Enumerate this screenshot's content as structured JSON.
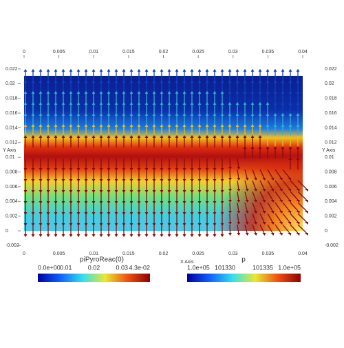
{
  "x_axis": {
    "title": "X Axis",
    "ticks": [
      0,
      0.005,
      0.01,
      0.015,
      0.02,
      0.025,
      0.03,
      0.035,
      0.04
    ]
  },
  "y_axis": {
    "title": "Y Axis",
    "ticks": [
      -0.002,
      0,
      0.002,
      0.004,
      0.006,
      0.008,
      0.01,
      0.012,
      0.014,
      0.016,
      0.018,
      0.02,
      0.022
    ]
  },
  "colorbars": [
    {
      "title": "piPyroReac(0)",
      "labels": [
        "0.0e+00",
        "0.01",
        "0.02",
        "0.03",
        "4.3e-02"
      ]
    },
    {
      "title": "p",
      "labels": [
        "1.0e+05",
        "101330",
        "101335",
        "1.0e+05"
      ]
    }
  ]
}
